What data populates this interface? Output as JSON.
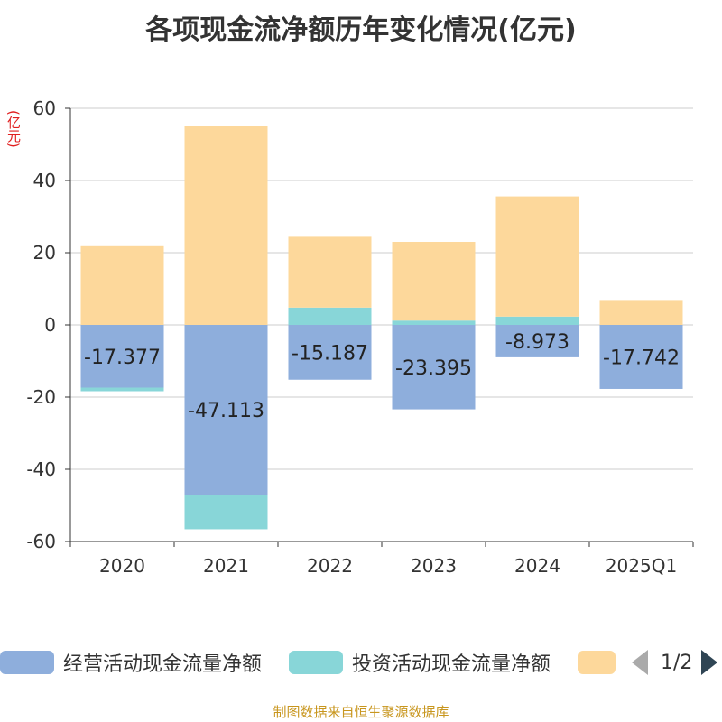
{
  "title": "各项现金流净额历年变化情况(亿元)",
  "unit_label": "(亿元)",
  "source": "制图数据来自恒生聚源数据库",
  "pager": {
    "text": "1/2"
  },
  "legend": [
    {
      "label": "经营活动现金流量净额",
      "color": "#8eaedc"
    },
    {
      "label": "投资活动现金流量净额",
      "color": "#88d6d8"
    },
    {
      "label": "",
      "color": "#fdd89b"
    }
  ],
  "chart_data": {
    "type": "bar",
    "stacked": true,
    "categories": [
      "2020",
      "2021",
      "2022",
      "2023",
      "2024",
      "2025Q1"
    ],
    "ylim": [
      -60,
      60
    ],
    "yticks": [
      60,
      40,
      20,
      0,
      -20,
      -40,
      -60
    ],
    "grid": true,
    "legend_position": "bottom",
    "series": [
      {
        "name": "经营活动现金流量净额",
        "color": "#8eaedc",
        "values": [
          -17.377,
          -47.113,
          -15.187,
          -23.395,
          -8.973,
          -17.742
        ],
        "labels": [
          "-17.377",
          "-47.113",
          "-15.187",
          "-23.395",
          "-8.973",
          "-17.742"
        ]
      },
      {
        "name": "投资活动现金流量净额",
        "color": "#88d6d8",
        "values": [
          -1.0,
          -9.5,
          4.8,
          1.2,
          2.3,
          0
        ]
      },
      {
        "name": "",
        "color": "#fdd89b",
        "values": [
          21.8,
          55.0,
          19.6,
          21.8,
          33.3,
          6.9
        ]
      }
    ]
  }
}
